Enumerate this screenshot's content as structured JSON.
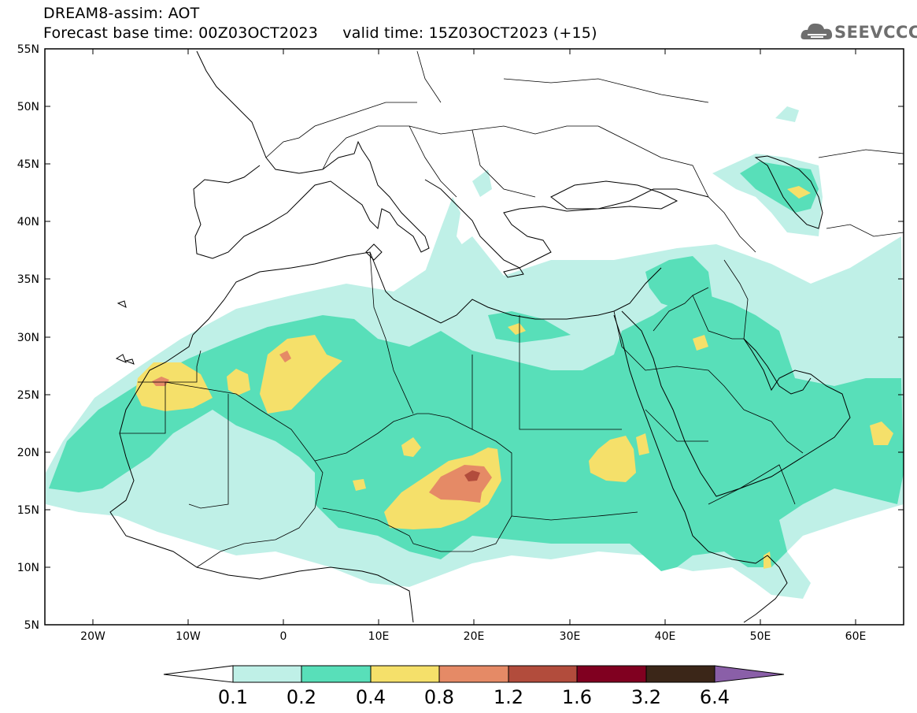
{
  "header": {
    "title": "DREAM8-assim: AOT",
    "subtitle": "Forecast base time: 00Z03OCT2023     valid time: 15Z03OCT2023 (+15)"
  },
  "logo": {
    "text": "SEEVCCC",
    "icon": "cloud-icon"
  },
  "map": {
    "lat_labels": [
      "55N",
      "50N",
      "45N",
      "40N",
      "35N",
      "30N",
      "25N",
      "20N",
      "15N",
      "10N",
      "5N"
    ],
    "lon_labels": [
      "20W",
      "10W",
      "0",
      "10E",
      "20E",
      "30E",
      "40E",
      "50E",
      "60E"
    ],
    "lon_range": [
      -25,
      65
    ],
    "lat_range": [
      5,
      55
    ]
  },
  "colorbar": {
    "levels": [
      "0.1",
      "0.2",
      "0.4",
      "0.8",
      "1.2",
      "1.6",
      "3.2",
      "6.4"
    ],
    "colors": [
      "#ffffff",
      "#bff0e7",
      "#58dfb9",
      "#f5e06a",
      "#e58a66",
      "#b24c3c",
      "#800020",
      "#3b2618",
      "#8a5fa8"
    ]
  }
}
